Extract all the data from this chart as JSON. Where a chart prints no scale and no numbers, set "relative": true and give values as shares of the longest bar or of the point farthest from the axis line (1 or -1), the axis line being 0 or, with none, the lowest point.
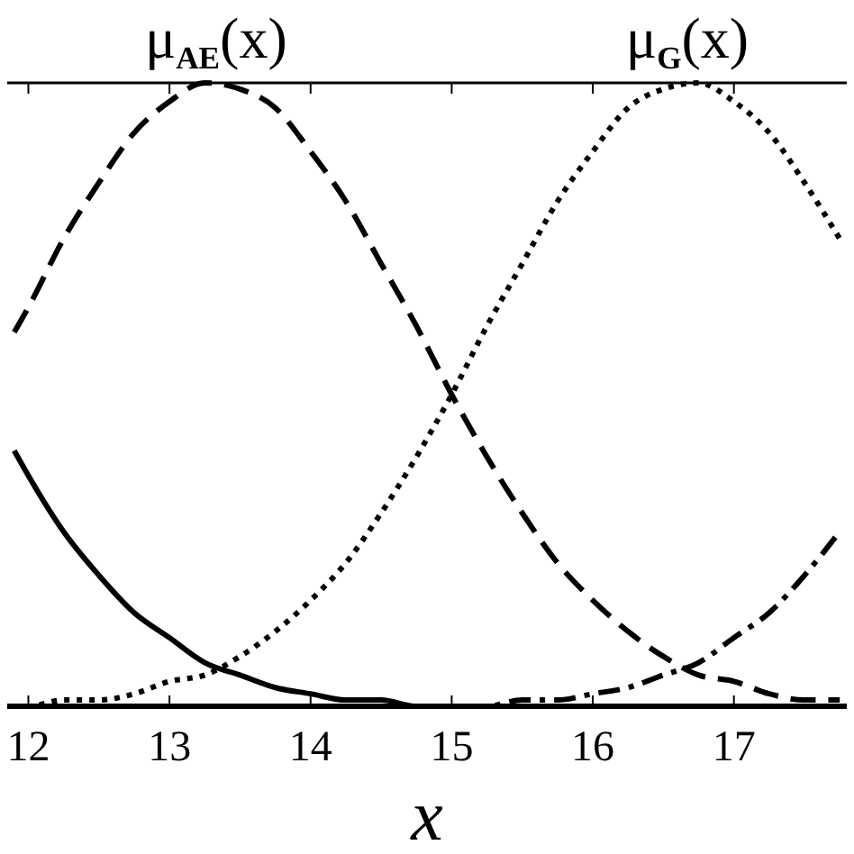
{
  "chart_data": {
    "type": "line",
    "relative": true,
    "xlabel": "x",
    "x": [
      11.9,
      12,
      12.25,
      12.5,
      12.75,
      13,
      13.25,
      13.5,
      13.75,
      14,
      14.25,
      14.5,
      14.75,
      15,
      15.25,
      15.5,
      15.75,
      16,
      16.25,
      16.5,
      16.75,
      17,
      17.25,
      17.5,
      17.75
    ],
    "series": [
      {
        "color": "#000000",
        "line_style": "solid",
        "values": [
          0.41,
          0.37,
          0.28,
          0.21,
          0.15,
          0.11,
          0.07,
          0.05,
          0.03,
          0.02,
          0.01,
          0.01,
          0,
          0,
          0,
          0,
          0,
          0,
          0,
          0,
          0,
          0,
          0,
          0,
          0
        ]
      },
      {
        "color": "#000000",
        "line_style": "dashed",
        "values": [
          0.6,
          0.64,
          0.75,
          0.84,
          0.92,
          0.97,
          1,
          0.99,
          0.96,
          0.89,
          0.81,
          0.71,
          0.61,
          0.5,
          0.4,
          0.31,
          0.23,
          0.17,
          0.12,
          0.08,
          0.05,
          0.04,
          0.02,
          0.01,
          0.01
        ]
      },
      {
        "color": "#000000",
        "line_style": "dotted",
        "values": [
          0,
          0,
          0.01,
          0.01,
          0.02,
          0.04,
          0.05,
          0.08,
          0.12,
          0.17,
          0.23,
          0.31,
          0.4,
          0.5,
          0.61,
          0.71,
          0.81,
          0.89,
          0.96,
          0.99,
          1,
          0.97,
          0.92,
          0.84,
          0.75
        ]
      },
      {
        "color": "#000000",
        "line_style": "dashdot",
        "values": [
          0,
          0,
          0,
          0,
          0,
          0,
          0,
          0,
          0,
          0,
          0,
          0,
          0,
          0,
          0,
          0.01,
          0.01,
          0.02,
          0.03,
          0.05,
          0.07,
          0.11,
          0.15,
          0.21,
          0.28
        ]
      }
    ],
    "xlim": [
      11.85,
      17.8
    ],
    "xticks": [
      12,
      13,
      14,
      15,
      16,
      17
    ],
    "grid": false,
    "annotations": [
      {
        "text": "μ$_{AE}$(x)",
        "x": 13.33,
        "y": 1
      },
      {
        "text": "μ$_{G}$(x)",
        "x": 16.67,
        "y": 1
      }
    ]
  }
}
